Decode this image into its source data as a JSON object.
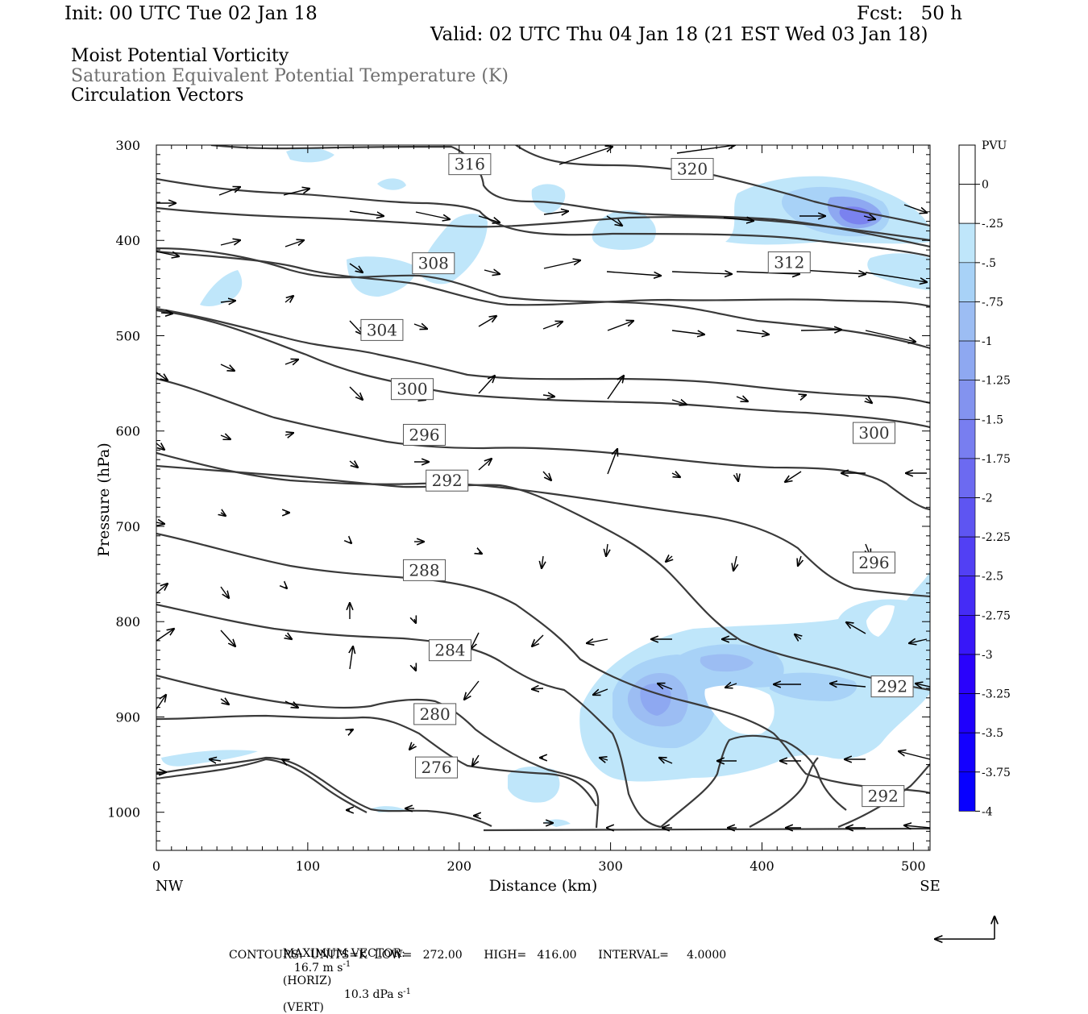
{
  "header": {
    "init": "Init: 00 UTC Tue 02 Jan 18",
    "fcst": "Fcst:   50 h",
    "valid": "Valid: 02 UTC Thu 04 Jan 18 (21 EST Wed 03 Jan 18)",
    "fields": [
      "Moist Potential Vorticity",
      "Saturation Equivalent Potential Temperature (K)",
      "Circulation Vectors"
    ]
  },
  "footer": {
    "max_vector_label": "MAXIMUM VECTOR:",
    "max_horiz": "16.7 m s",
    "horiz_tag": "(HORIZ)",
    "max_vert": "10.3 dPa s",
    "vert_tag": "(VERT)",
    "exp": "-1",
    "contours": "CONTOURS:  UNITS=K  LOW=   272.00      HIGH=   416.00      INTERVAL=     4.0000"
  },
  "colors": {
    "contour": "#3a3a3a",
    "pv_shades": [
      "#bfe6fa",
      "#a8d2f7",
      "#9cbdf3",
      "#8ea8f1",
      "#8393ef",
      "#787ef0",
      "#6c6af1",
      "#5e55f2",
      "#5240f4",
      "#452cf6",
      "#3817f8",
      "#2a02fb",
      "#1f00fc",
      "#1400fe",
      "#0800ff"
    ]
  },
  "chart_data": {
    "type": "contour",
    "xlabel": "Distance (km)",
    "ylabel": "Pressure (hPa)",
    "xlim": [
      0,
      511
    ],
    "ylim": [
      1040,
      300
    ],
    "x_ticks": [
      0,
      100,
      200,
      300,
      400,
      500
    ],
    "y_ticks": [
      300,
      400,
      500,
      600,
      700,
      800,
      900,
      1000
    ],
    "x_end_labels": [
      "NW",
      "SE"
    ],
    "colorbar": {
      "unit": "PVU",
      "labels": [
        "0",
        "-.25",
        "-.5",
        "-.75",
        "-1",
        "-1.25",
        "-1.5",
        "-1.75",
        "-2",
        "-2.25",
        "-2.5",
        "-2.75",
        "-3",
        "-3.25",
        "-3.5",
        "-3.75",
        "-4"
      ]
    },
    "contour_labels": [
      {
        "text": "316",
        "x": 207,
        "p": 320
      },
      {
        "text": "320",
        "x": 354,
        "p": 325
      },
      {
        "text": "308",
        "x": 183,
        "p": 424
      },
      {
        "text": "312",
        "x": 418,
        "p": 423
      },
      {
        "text": "304",
        "x": 149,
        "p": 494
      },
      {
        "text": "300",
        "x": 169,
        "p": 556
      },
      {
        "text": "300",
        "x": 474,
        "p": 602
      },
      {
        "text": "296",
        "x": 177,
        "p": 604
      },
      {
        "text": "292",
        "x": 192,
        "p": 652
      },
      {
        "text": "296",
        "x": 474,
        "p": 738
      },
      {
        "text": "288",
        "x": 177,
        "p": 746
      },
      {
        "text": "284",
        "x": 194,
        "p": 830
      },
      {
        "text": "292",
        "x": 486,
        "p": 868
      },
      {
        "text": "280",
        "x": 184,
        "p": 897
      },
      {
        "text": "276",
        "x": 185,
        "p": 953
      },
      {
        "text": "292",
        "x": 480,
        "p": 983
      }
    ]
  }
}
